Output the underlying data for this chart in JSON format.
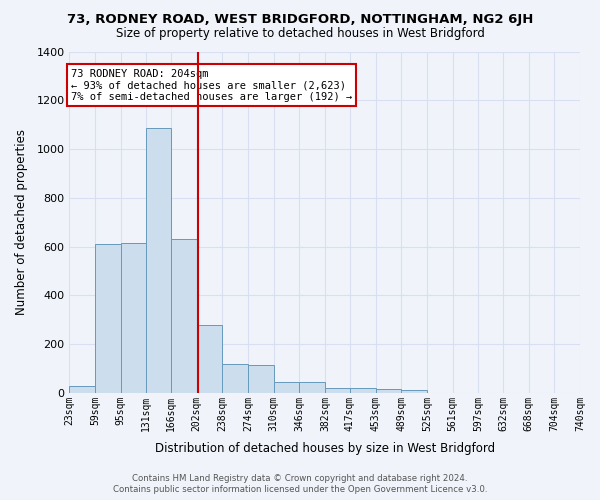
{
  "title": "73, RODNEY ROAD, WEST BRIDGFORD, NOTTINGHAM, NG2 6JH",
  "subtitle": "Size of property relative to detached houses in West Bridgford",
  "xlabel": "Distribution of detached houses by size in West Bridgford",
  "ylabel": "Number of detached properties",
  "bar_color": "#ccdded",
  "bar_edge_color": "#6699bb",
  "background_color": "#f0f4fa",
  "grid_color": "#d8dff0",
  "vline_x": 204,
  "vline_color": "#cc0000",
  "annotation_lines": [
    "73 RODNEY ROAD: 204sqm",
    "← 93% of detached houses are smaller (2,623)",
    "7% of semi-detached houses are larger (192) →"
  ],
  "annotation_box_color": "#ffffff",
  "annotation_box_edge": "#cc0000",
  "bin_edges": [
    23,
    59,
    95,
    131,
    166,
    202,
    238,
    274,
    310,
    346,
    382,
    417,
    453,
    489,
    525,
    561,
    597,
    632,
    668,
    704,
    740
  ],
  "bin_heights": [
    30,
    610,
    615,
    1085,
    630,
    280,
    120,
    115,
    45,
    45,
    20,
    20,
    15,
    10,
    0,
    0,
    0,
    0,
    0,
    0
  ],
  "ylim": [
    0,
    1400
  ],
  "yticks": [
    0,
    200,
    400,
    600,
    800,
    1000,
    1200,
    1400
  ],
  "footer_line1": "Contains HM Land Registry data © Crown copyright and database right 2024.",
  "footer_line2": "Contains public sector information licensed under the Open Government Licence v3.0."
}
